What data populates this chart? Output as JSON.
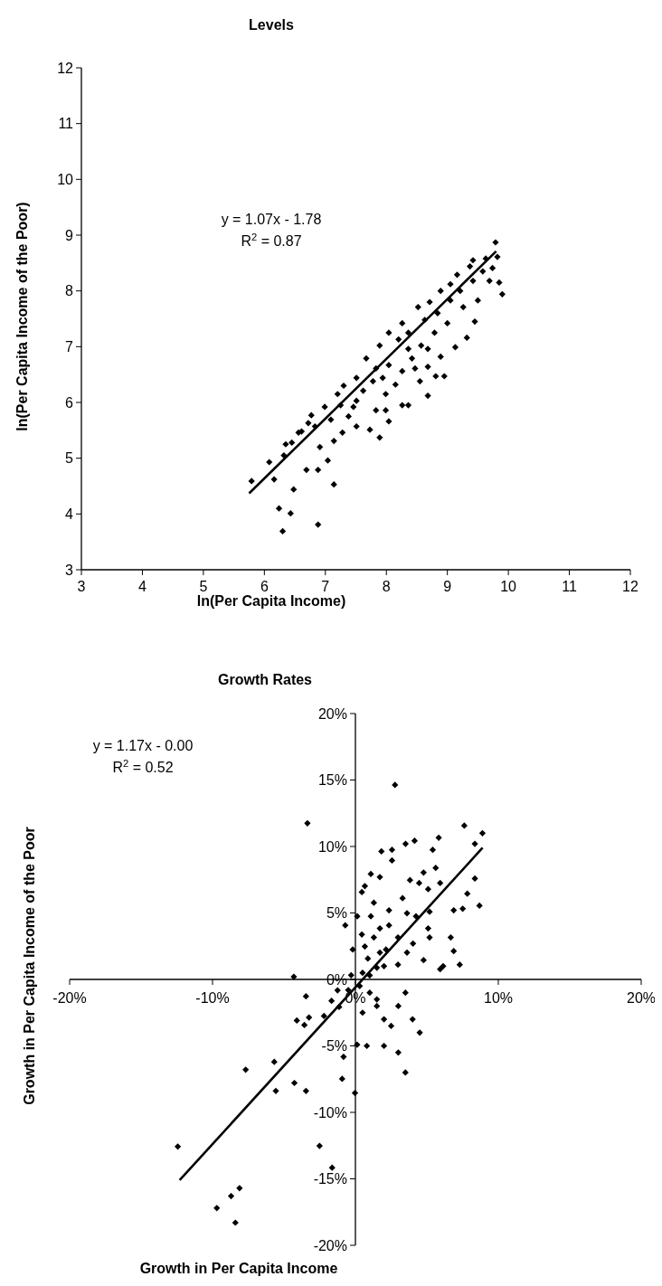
{
  "chart_data": [
    {
      "type": "scatter",
      "title": "Levels",
      "xlabel": "ln(Per Capita Income)",
      "ylabel": "ln(Per Capita Income of the Poor)",
      "xlim": [
        3,
        12
      ],
      "ylim": [
        3,
        12
      ],
      "xticks": [
        3,
        4,
        5,
        6,
        7,
        8,
        9,
        10,
        11,
        12
      ],
      "yticks": [
        3,
        4,
        5,
        6,
        7,
        8,
        9,
        10,
        11,
        12
      ],
      "annotations": [
        "y = 1.07x - 1.78",
        "R$^{2}$ = 0.87"
      ],
      "series": [
        {
          "marker": "diamond",
          "color": "#000000",
          "x": [
            9.79,
            9.82,
            9.9,
            9.85,
            9.42,
            9.63,
            9.45,
            9.32,
            9.13,
            8.89,
            8.95,
            8.81,
            8.68,
            8.55,
            8.26,
            8.04,
            7.89,
            7.73,
            7.51,
            7.14,
            6.88,
            6.3,
            6.43,
            6.24,
            6.48,
            5.79,
            6.08,
            6.16,
            6.35,
            6.32,
            6.69,
            6.88,
            7.04,
            6.91,
            7.14,
            7.28,
            6.61,
            6.77,
            6.99,
            7.2,
            7.3,
            7.51,
            7.67,
            7.83,
            7.89,
            8.04,
            8.26,
            8.52,
            8.71,
            8.89,
            9.16,
            9.37,
            9.58,
            9.69,
            9.5,
            9.26,
            9.0,
            8.79,
            8.57,
            8.42,
            8.26,
            8.15,
            7.99,
            7.83,
            7.62,
            7.46,
            7.38,
            7.09,
            6.83,
            6.56,
            6.72,
            6.45,
            8.2,
            8.36,
            8.63,
            8.84,
            9.05,
            9.21,
            9.05,
            9.42,
            9.74,
            7.78,
            8.04,
            8.36,
            8.68,
            8.47,
            7.25,
            7.51,
            7.94,
            8.68,
            8.36,
            7.99
          ],
          "values": [
            8.87,
            8.61,
            7.94,
            8.15,
            8.55,
            8.58,
            7.45,
            7.16,
            6.99,
            6.82,
            6.47,
            6.47,
            6.12,
            6.38,
            5.95,
            5.66,
            5.37,
            5.51,
            5.57,
            4.53,
            3.81,
            3.69,
            4.01,
            4.1,
            4.44,
            4.59,
            4.93,
            4.62,
            5.25,
            5.05,
            4.79,
            4.79,
            4.96,
            5.2,
            5.31,
            5.46,
            5.48,
            5.77,
            5.92,
            6.15,
            6.3,
            6.44,
            6.79,
            6.61,
            7.02,
            7.25,
            7.42,
            7.71,
            7.8,
            8.0,
            8.29,
            8.44,
            8.35,
            8.18,
            7.83,
            7.71,
            7.42,
            7.25,
            7.02,
            6.79,
            6.56,
            6.32,
            6.15,
            5.86,
            6.21,
            5.92,
            5.75,
            5.69,
            5.57,
            5.46,
            5.63,
            5.28,
            7.13,
            7.25,
            7.48,
            7.6,
            7.83,
            8.0,
            8.12,
            8.18,
            8.41,
            6.38,
            6.67,
            6.96,
            6.96,
            6.61,
            5.95,
            6.03,
            6.44,
            6.64,
            5.95,
            5.86
          ]
        },
        {
          "type": "line",
          "color": "#000000",
          "x": [
            5.75,
            9.8
          ],
          "values": [
            4.37,
            8.71
          ]
        }
      ]
    },
    {
      "type": "scatter",
      "title": "Growth Rates",
      "xlabel": "Growth in Per Capita Income",
      "ylabel": "Growth in Per Capita Income of the Poor",
      "xlim": [
        -20,
        20
      ],
      "ylim": [
        -20,
        20
      ],
      "xticks": [
        {
          "value": -20,
          "label": "-20%"
        },
        {
          "value": -10,
          "label": "-10%"
        },
        {
          "value": 0,
          "label": "0%"
        },
        {
          "value": 10,
          "label": "10%"
        },
        {
          "value": 20,
          "label": "20%"
        }
      ],
      "yticks": [
        {
          "value": -20,
          "label": "-20%"
        },
        {
          "value": -15,
          "label": "-15%"
        },
        {
          "value": -10,
          "label": "-10%"
        },
        {
          "value": -5,
          "label": "-5%"
        },
        {
          "value": 0,
          "label": "0%"
        },
        {
          "value": 5,
          "label": "5%"
        },
        {
          "value": 10,
          "label": "10%"
        },
        {
          "value": 15,
          "label": "15%"
        },
        {
          "value": 20,
          "label": "20%"
        }
      ],
      "annotations": [
        "y = 1.17x - 0.00",
        "R$^{2}$ = 0.52"
      ],
      "series": [
        {
          "marker": "diamond",
          "color": "#000000",
          "x": [
            2.77,
            7.62,
            8.89,
            8.36,
            5.83,
            4.14,
            3.51,
            1.82,
            2.56,
            2.56,
            5.41,
            5.62,
            4.77,
            8.36,
            7.83,
            8.68,
            7.51,
            6.88,
            6.67,
            6.88,
            7.3,
            5.93,
            4.77,
            5.19,
            5.19,
            1.08,
            1.71,
            0.66,
            0.45,
            1.29,
            2.35,
            3.3,
            3.82,
            4.46,
            5.09,
            5.93,
            -0.71,
            -0.19,
            1.08,
            1.71,
            2.35,
            2.98,
            4.03,
            1.29,
            0.66,
            2.14,
            3.61,
            2.98,
            1.5,
            0.45,
            6.14,
            4.24,
            5.09,
            3.61,
            0.13,
            0.87,
            1.71,
            -3.36,
            -4.31,
            -0.3,
            -1.25,
            -3.46,
            -1.67,
            -1.14,
            -3.25,
            -4.1,
            -3.57,
            -2.2,
            0.12,
            -0.83,
            -5.68,
            -7.68,
            -0.93,
            -0.03,
            -5.57,
            -4.27,
            -3.46,
            -12.43,
            -2.51,
            -1.63,
            -8.11,
            -9.7,
            -8.7,
            -8.4,
            0.5,
            1.0,
            1.5,
            2.0,
            2.5,
            3.0,
            3.5,
            4.0,
            3.0,
            3.5,
            0.3,
            1.0,
            2.0,
            0.5,
            1.5,
            -0.5,
            4.5,
            2.0,
            0.8
          ],
          "values": [
            14.63,
            11.57,
            11.0,
            10.2,
            10.66,
            10.43,
            10.2,
            9.63,
            9.75,
            8.95,
            9.75,
            8.39,
            8.04,
            7.59,
            6.45,
            5.55,
            5.32,
            5.2,
            3.16,
            2.13,
            1.11,
            0.77,
            1.45,
            3.16,
            5.09,
            7.93,
            7.7,
            7.02,
            6.57,
            5.77,
            5.2,
            6.11,
            7.47,
            7.25,
            6.79,
            7.25,
            4.07,
            2.25,
            4.75,
            3.84,
            4.07,
            3.16,
            2.7,
            3.16,
            2.48,
            2.25,
            2.02,
            1.11,
            0.88,
            3.38,
            1.0,
            4.75,
            3.84,
            4.98,
            4.75,
            1.57,
            2.02,
            11.75,
            0.2,
            0.32,
            -0.82,
            -1.27,
            -1.61,
            -2.07,
            -2.86,
            -3.09,
            -3.43,
            -2.75,
            -4.91,
            -5.82,
            -6.2,
            -6.79,
            -7.48,
            -8.54,
            -8.39,
            -7.79,
            -8.39,
            -12.57,
            -12.52,
            -14.16,
            -15.7,
            -17.2,
            -16.3,
            -18.3,
            0.5,
            -1.0,
            -2.0,
            -3.0,
            -3.5,
            -2.0,
            -1.0,
            -3.0,
            -5.5,
            -7.0,
            -0.5,
            0.3,
            1.0,
            -2.5,
            -1.5,
            -0.8,
            -4.0,
            -5.0,
            -5.0
          ]
        },
        {
          "type": "line",
          "color": "#000000",
          "x": [
            -12.3,
            8.9
          ],
          "values": [
            -15.1,
            9.9
          ]
        }
      ]
    }
  ]
}
